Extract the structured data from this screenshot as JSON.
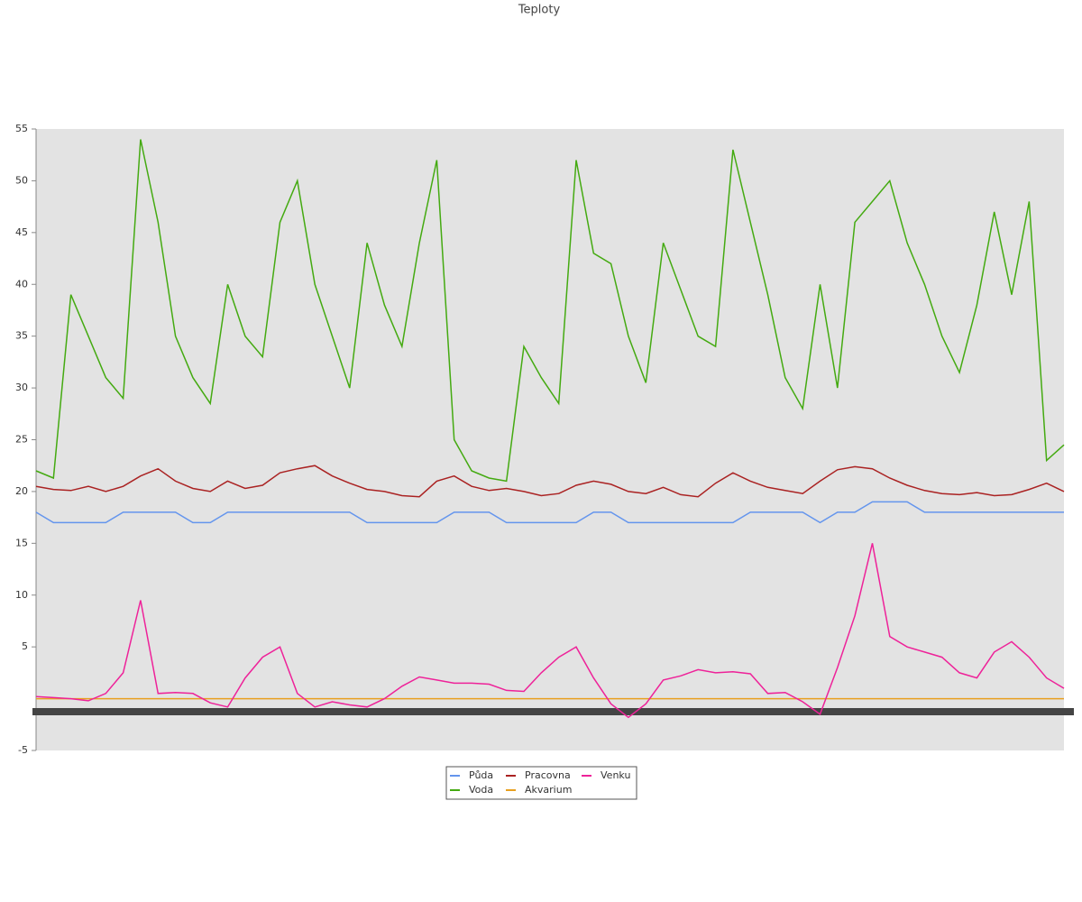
{
  "chart_data": {
    "type": "line",
    "title": "Teploty",
    "categories": [
      null,
      null,
      null,
      null,
      null,
      null,
      null,
      null,
      null,
      null,
      null,
      null,
      null,
      null,
      null,
      null,
      null,
      null,
      null,
      null,
      null,
      null,
      null,
      null,
      null,
      null,
      null,
      null,
      null,
      null,
      null,
      null,
      null,
      null,
      null,
      null,
      null,
      null,
      null,
      null,
      null,
      null,
      null,
      null,
      null,
      null,
      null,
      null,
      null,
      null,
      null,
      null,
      null,
      null,
      null,
      null,
      null,
      null,
      null,
      null
    ],
    "series": [
      {
        "name": "Půda",
        "color": "#6495ed",
        "values": [
          18,
          17,
          17,
          17,
          17,
          18,
          18,
          18,
          18,
          17,
          17,
          18,
          18,
          18,
          18,
          18,
          18,
          18,
          18,
          17,
          17,
          17,
          17,
          17,
          18,
          18,
          18,
          17,
          17,
          17,
          17,
          17,
          18,
          18,
          17,
          17,
          17,
          17,
          17,
          17,
          17,
          18,
          18,
          18,
          18,
          17,
          18,
          18,
          19,
          19,
          19,
          18,
          18,
          18,
          18,
          18,
          18,
          18,
          18,
          18
        ]
      },
      {
        "name": "Voda",
        "color": "#44aa11",
        "values": [
          22,
          21.3,
          39,
          35,
          31,
          29,
          54,
          46,
          35,
          31,
          28.5,
          40,
          35,
          33,
          46,
          50,
          40,
          35,
          30,
          44,
          38,
          34,
          44,
          52,
          25,
          22,
          21.3,
          21,
          34,
          31,
          28.5,
          52,
          43,
          42,
          35,
          30.5,
          44,
          39.5,
          35,
          34,
          53,
          46,
          39,
          31,
          28,
          40,
          30,
          46,
          48,
          50,
          44,
          40,
          35,
          31.5,
          38,
          47,
          39,
          48,
          23,
          24.5
        ]
      },
      {
        "name": "Pracovna",
        "color": "#aa2222",
        "values": [
          20.5,
          20.2,
          20.1,
          20.5,
          20,
          20.5,
          21.5,
          22.2,
          21,
          20.3,
          20,
          21,
          20.3,
          20.6,
          21.8,
          22.2,
          22.5,
          21.5,
          20.8,
          20.2,
          20,
          19.6,
          19.5,
          21,
          21.5,
          20.5,
          20.1,
          20.3,
          20,
          19.6,
          19.8,
          20.6,
          21,
          20.7,
          20,
          19.8,
          20.4,
          19.7,
          19.5,
          20.8,
          21.8,
          21,
          20.4,
          20.1,
          19.8,
          21,
          22.1,
          22.4,
          22.2,
          21.3,
          20.6,
          20.1,
          19.8,
          19.7,
          19.9,
          19.6,
          19.7,
          20.2,
          20.8,
          20
        ]
      },
      {
        "name": "Akvarium",
        "color": "#e8a020",
        "values": [
          0,
          0,
          0,
          0,
          0,
          0,
          0,
          0,
          0,
          0,
          0,
          0,
          0,
          0,
          0,
          0,
          0,
          0,
          0,
          0,
          0,
          0,
          0,
          0,
          0,
          0,
          0,
          0,
          0,
          0,
          0,
          0,
          0,
          0,
          0,
          0,
          0,
          0,
          0,
          0,
          0,
          0,
          0,
          0,
          0,
          0,
          0,
          0,
          0,
          0,
          0,
          0,
          0,
          0,
          0,
          0,
          0,
          0,
          0,
          0
        ]
      },
      {
        "name": "Venku",
        "color": "#ee2299",
        "values": [
          0.2,
          0.1,
          0,
          -0.2,
          0.5,
          2.5,
          9.5,
          0.5,
          0.6,
          0.5,
          -0.4,
          -0.8,
          2,
          4,
          5,
          0.5,
          -0.8,
          -0.3,
          -0.6,
          -0.8,
          0,
          1.2,
          2.1,
          1.8,
          1.5,
          1.5,
          1.4,
          0.8,
          0.7,
          2.5,
          4,
          5,
          2,
          -0.5,
          -1.8,
          -0.5,
          1.8,
          2.2,
          2.8,
          2.5,
          2.6,
          2.4,
          0.5,
          0.6,
          -0.3,
          -1.5,
          3,
          8,
          15,
          6,
          5,
          4.5,
          4,
          2.5,
          2,
          4.5,
          5.5,
          4,
          2,
          1
        ]
      }
    ],
    "ylim": [
      -5,
      55
    ],
    "yticks": [
      -5,
      5,
      10,
      15,
      20,
      25,
      30,
      35,
      40,
      45,
      50,
      55
    ],
    "legend": "bottom"
  }
}
